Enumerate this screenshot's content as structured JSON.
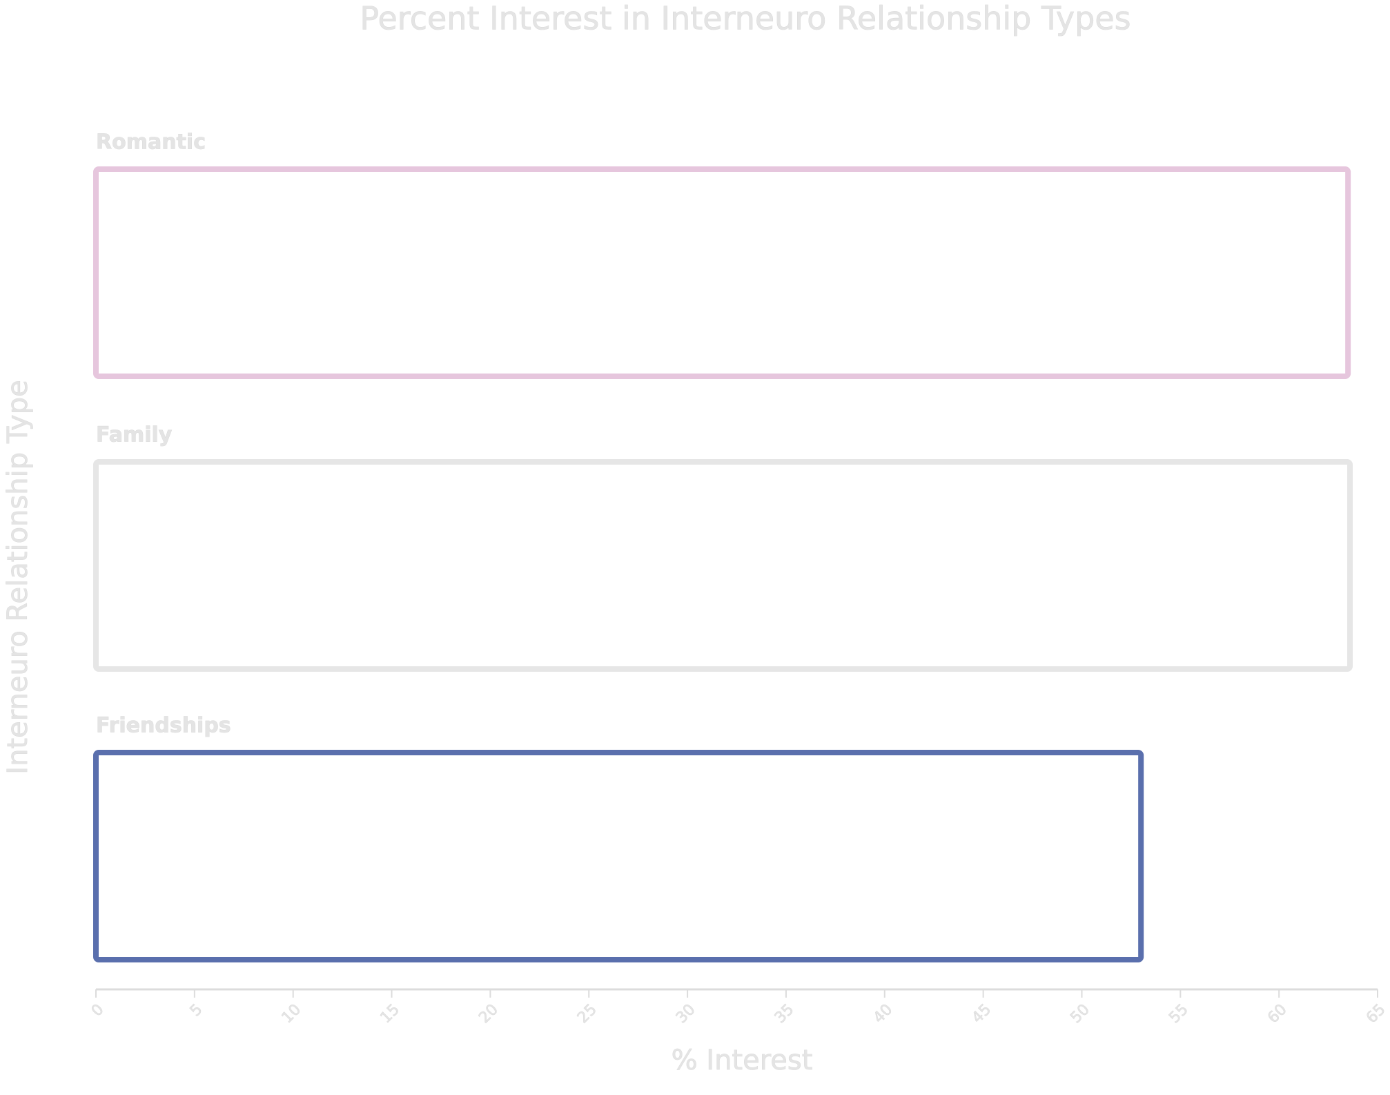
{
  "chart_data": {
    "type": "bar",
    "orientation": "horizontal",
    "title": "Percent Interest in Interneuro Relationship Types",
    "x_label": "% Interest",
    "y_label": "Interneuro Relationship Type",
    "categories": [
      "Romantic",
      "Family",
      "Friendships"
    ],
    "values": [
      63.5,
      63.6,
      53
    ],
    "colors": [
      "#e6c6dd",
      "#e6e6e6",
      "#5a6fad"
    ],
    "xlim": [
      0,
      65
    ],
    "xticks": [
      0,
      5,
      10,
      15,
      20,
      25,
      30,
      35,
      40,
      45,
      50,
      55,
      60,
      65
    ]
  }
}
